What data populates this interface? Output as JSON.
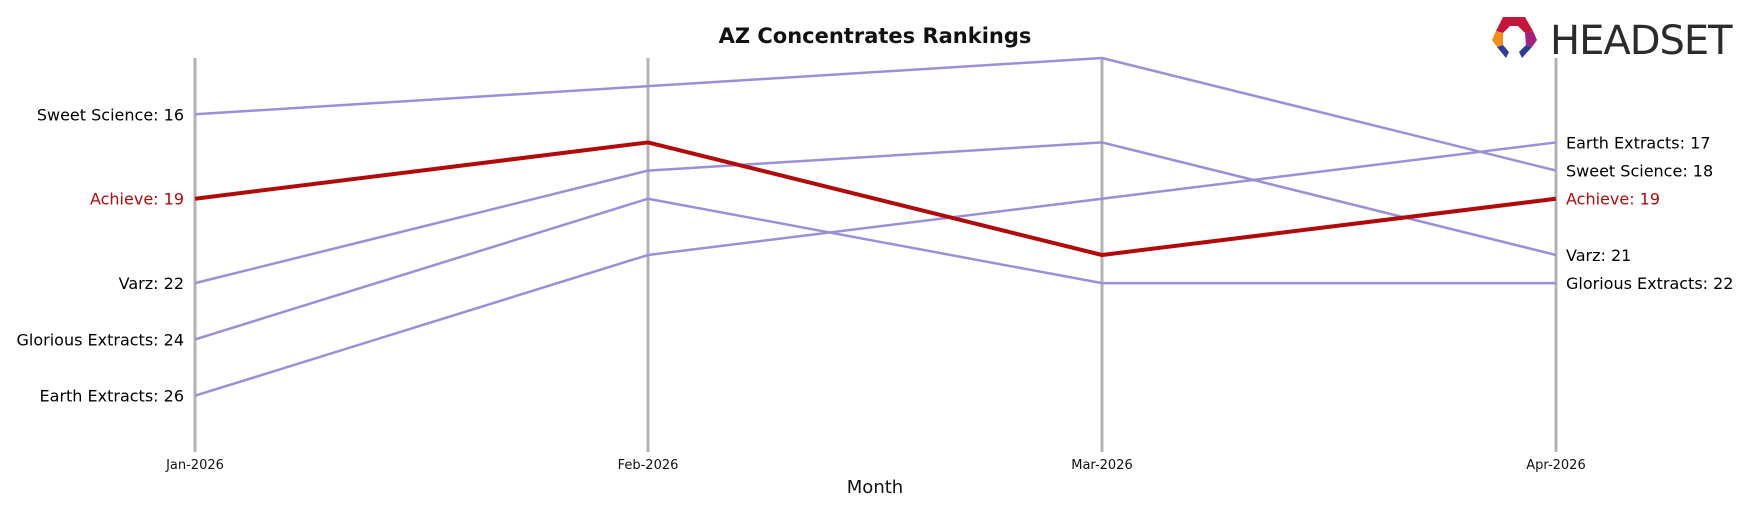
{
  "chart_data": {
    "type": "line",
    "title": "AZ Concentrates Rankings",
    "xlabel": "Month",
    "ylabel": "",
    "x": [
      "Jan-2026",
      "Feb-2026",
      "Mar-2026",
      "Apr-2026"
    ],
    "ylim": [
      28,
      14
    ],
    "y_inverted": true,
    "grid": false,
    "series": [
      {
        "name": "Sweet Science",
        "values": [
          16,
          15,
          14,
          18
        ],
        "highlight": false
      },
      {
        "name": "Achieve",
        "values": [
          19,
          17,
          21,
          19
        ],
        "highlight": true
      },
      {
        "name": "Varz",
        "values": [
          22,
          18,
          17,
          21
        ],
        "highlight": false
      },
      {
        "name": "Glorious Extracts",
        "values": [
          24,
          19,
          22,
          22
        ],
        "highlight": false
      },
      {
        "name": "Earth Extracts",
        "values": [
          26,
          21,
          19,
          17
        ],
        "highlight": false
      }
    ],
    "colors": {
      "default": "#9b8fd6",
      "highlight": "#b00a0a",
      "axis_line": "#b3b3b3"
    }
  },
  "logo": {
    "text": "HEADSET"
  }
}
